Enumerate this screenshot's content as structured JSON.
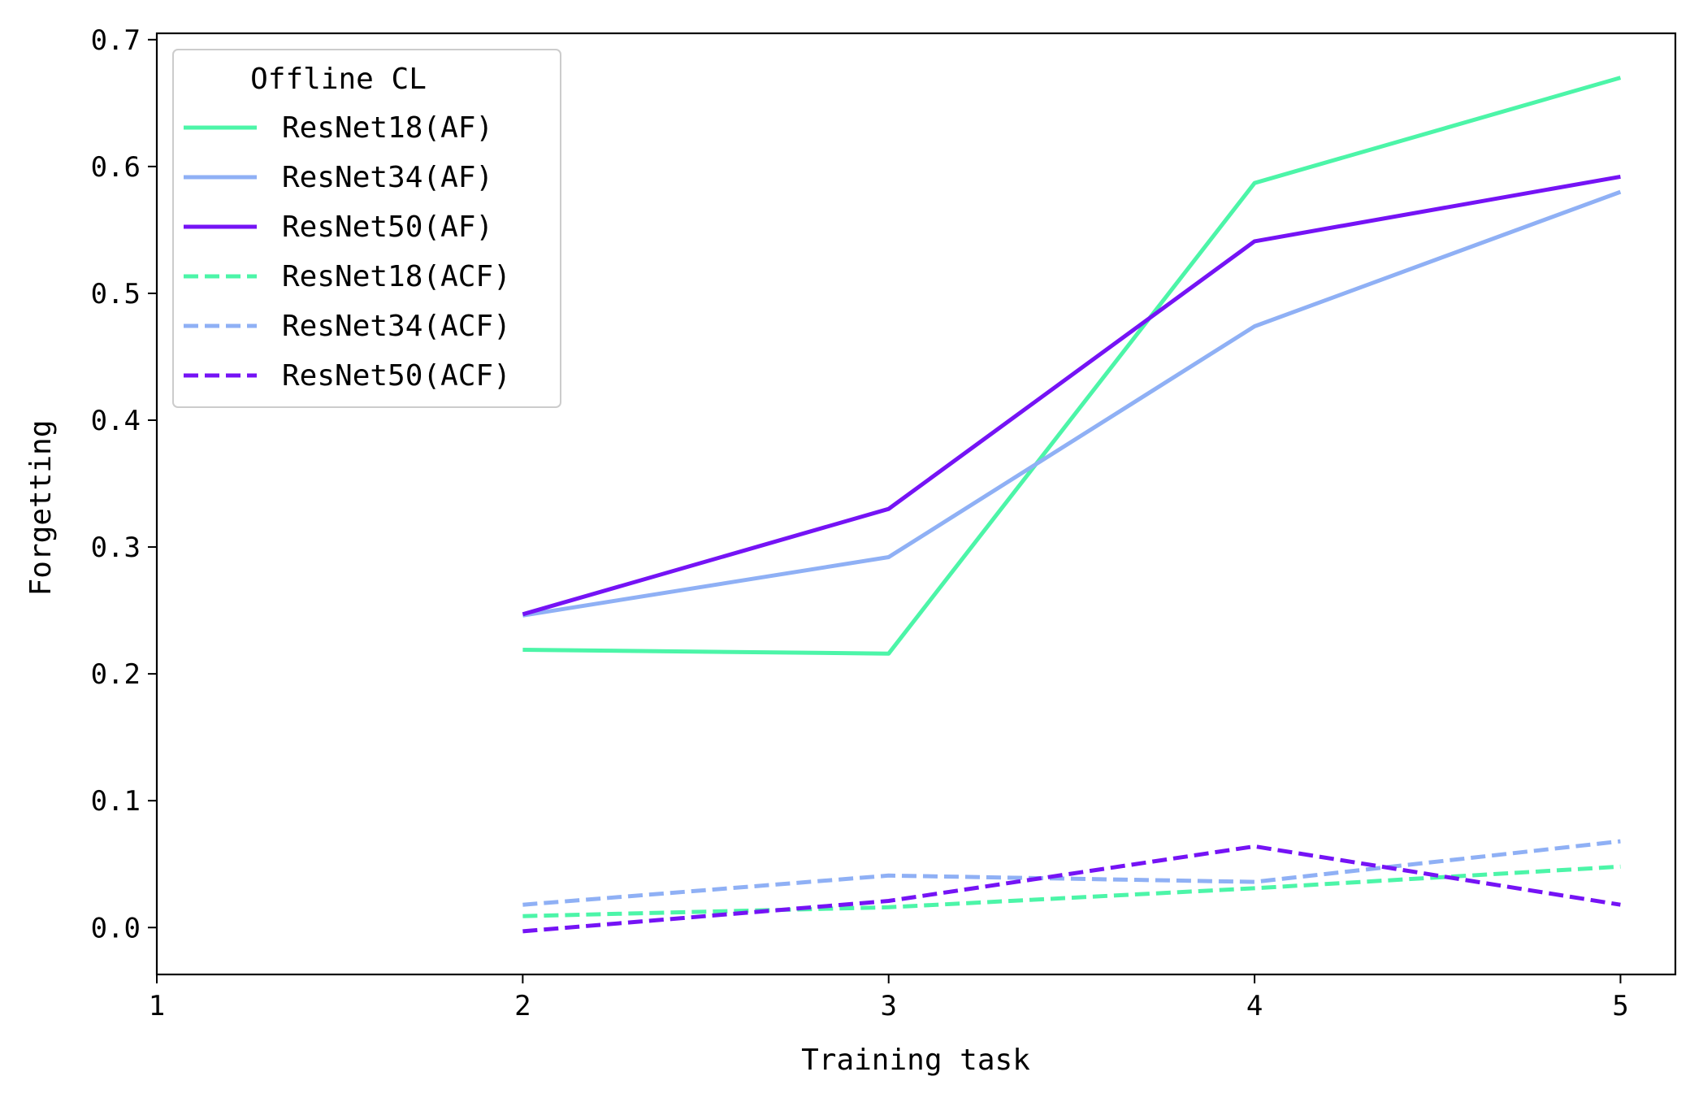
{
  "chart_data": {
    "type": "line",
    "title": "",
    "xlabel": "Training task",
    "ylabel": "Forgetting",
    "xlim": [
      1,
      5.15
    ],
    "ylim": [
      -0.037,
      0.705
    ],
    "xticks": [
      1,
      2,
      3,
      4,
      5
    ],
    "xtick_labels": [
      "1",
      "2",
      "3",
      "4",
      "5"
    ],
    "yticks": [
      0.0,
      0.1,
      0.2,
      0.3,
      0.4,
      0.5,
      0.6,
      0.7
    ],
    "ytick_labels": [
      "0.0",
      "0.1",
      "0.2",
      "0.3",
      "0.4",
      "0.5",
      "0.6",
      "0.7"
    ],
    "grid": false,
    "legend": {
      "title": "Offline CL",
      "placement": "top-left"
    },
    "x": [
      2,
      3,
      4,
      5
    ],
    "series": [
      {
        "name": "ResNet18(AF)",
        "color": "#4cf5a8",
        "style": "solid",
        "values": [
          0.219,
          0.216,
          0.587,
          0.67
        ]
      },
      {
        "name": "ResNet34(AF)",
        "color": "#8fb0f5",
        "style": "solid",
        "values": [
          0.246,
          0.292,
          0.474,
          0.58
        ]
      },
      {
        "name": "ResNet50(AF)",
        "color": "#7513f5",
        "style": "solid",
        "values": [
          0.247,
          0.33,
          0.541,
          0.592
        ]
      },
      {
        "name": "ResNet18(ACF)",
        "color": "#4cf5a8",
        "style": "dashed",
        "values": [
          0.009,
          0.016,
          0.031,
          0.048
        ]
      },
      {
        "name": "ResNet34(ACF)",
        "color": "#8fb0f5",
        "style": "dashed",
        "values": [
          0.018,
          0.041,
          0.036,
          0.068
        ]
      },
      {
        "name": "ResNet50(ACF)",
        "color": "#7513f5",
        "style": "dashed",
        "values": [
          -0.003,
          0.021,
          0.064,
          0.018
        ]
      }
    ]
  }
}
